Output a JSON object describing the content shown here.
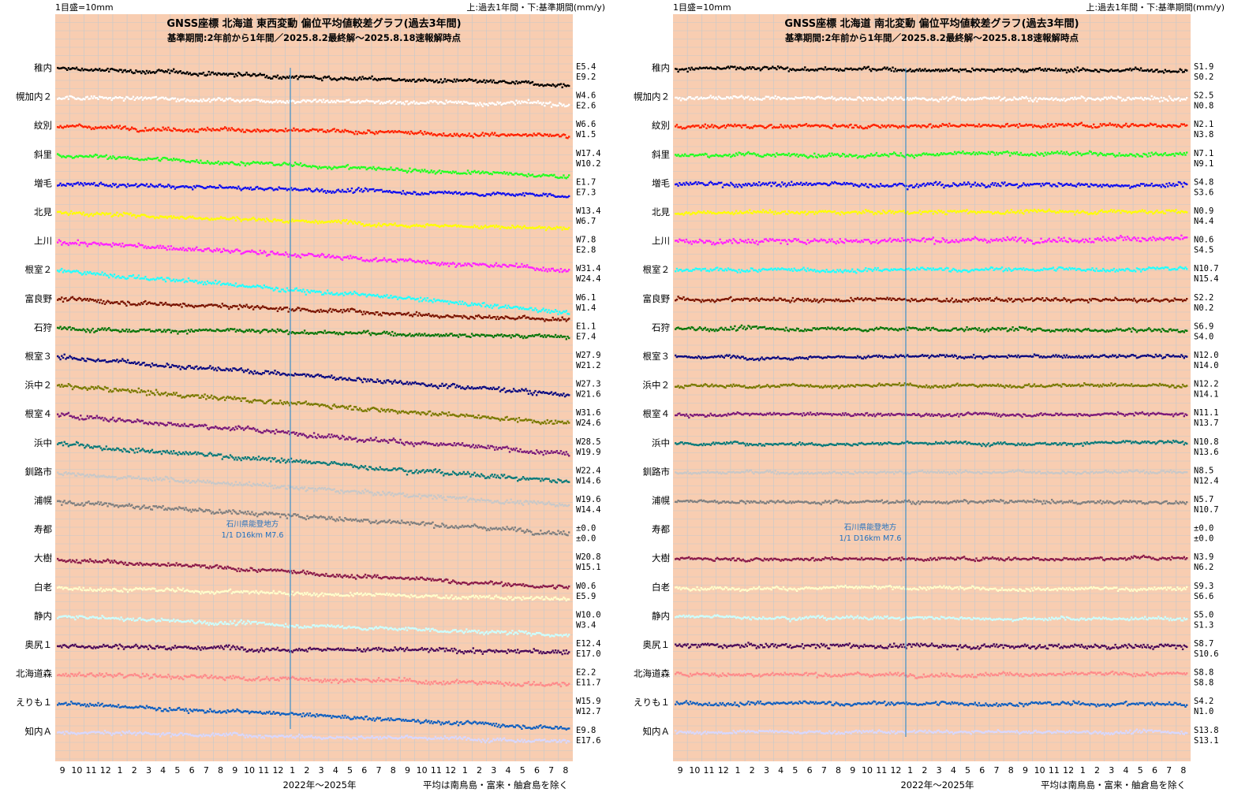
{
  "colors": {
    "plot_bg": "#f8cdb1",
    "grid": "#c9c9c9",
    "event_line": "#3d8fc9",
    "event_text": "#1f6fbf",
    "series": [
      "#000000",
      "#ffffff",
      "#ff2200",
      "#22ff22",
      "#1010ee",
      "#ffff00",
      "#ff22ff",
      "#22ffff",
      "#7a1400",
      "#0a760a",
      "#0a0a80",
      "#7a7a00",
      "#7a1a7a",
      "#0a7a7a",
      "#c8c8c8",
      "#808080",
      "#f8cdb1",
      "#8a1a4a",
      "#ffffcc",
      "#ccffff",
      "#4a0a5a",
      "#ff8a8a",
      "#1060c0",
      "#d8d8ff"
    ]
  },
  "panels": [
    {
      "id": "east-west",
      "scale_note": "1目盛=10mm",
      "period_note": "上:過去1年間・下:基準期間(mm/y)",
      "title": "GNSS座標 北海道 東西変動 偏位平均値較差グラフ(過去3年間)",
      "subtitle": "基準期間:2年前から1年間／2025.8.2最終解～2025.8.18速報解時点",
      "event_label_1": "石川県能登地方",
      "event_label_2": "1/1 D16km M7.6",
      "x_ticks": [
        "9",
        "10",
        "11",
        "12",
        "1",
        "2",
        "3",
        "4",
        "5",
        "6",
        "7",
        "8",
        "9",
        "10",
        "11",
        "12",
        "1",
        "2",
        "3",
        "4",
        "5",
        "6",
        "7",
        "8",
        "9",
        "10",
        "11",
        "12",
        "1",
        "2",
        "3",
        "4",
        "5",
        "6",
        "7",
        "8"
      ],
      "xlabel": "2022年～2025年",
      "footnote": "平均は南鳥島・富来・舳倉島を除く"
    },
    {
      "id": "north-south",
      "scale_note": "1目盛=10mm",
      "period_note": "上:過去1年間・下:基準期間(mm/y)",
      "title": "GNSS座標 北海道 南北変動 偏位平均値較差グラフ(過去3年間)",
      "subtitle": "基準期間:2年前から1年間／2025.8.2最終解～2025.8.18速報解時点",
      "event_label_1": "石川県能登地方",
      "event_label_2": "1/1 D16km M7.6",
      "x_ticks": [
        "9",
        "10",
        "11",
        "12",
        "1",
        "2",
        "3",
        "4",
        "5",
        "6",
        "7",
        "8",
        "9",
        "10",
        "11",
        "12",
        "1",
        "2",
        "3",
        "4",
        "5",
        "6",
        "7",
        "8",
        "9",
        "10",
        "11",
        "12",
        "1",
        "2",
        "3",
        "4",
        "5",
        "6",
        "7",
        "8"
      ],
      "xlabel": "2022年～2025年",
      "footnote": "平均は南鳥島・富来・舳倉島を除く"
    }
  ],
  "chart_data": [
    {
      "type": "scatter",
      "title": "GNSS座標 北海道 東西変動 偏位平均値較差グラフ(過去3年間)",
      "unit_per_division_mm": 10,
      "time_range": [
        "2022-09",
        "2025-08"
      ],
      "event": {
        "date": "2024-01-01",
        "label": "石川県能登地方 1/1 D16km M7.6"
      },
      "series": [
        {
          "name": "稚内",
          "rate_recent": "E5.4",
          "rate_base": "E9.2",
          "trend_mm": -20,
          "noise": 2.5,
          "gap": null,
          "jump": null
        },
        {
          "name": "幌加内２",
          "rate_recent": "W4.6",
          "rate_base": "E2.6",
          "trend_mm": -8,
          "noise": 2.5,
          "gap": null,
          "jump": null
        },
        {
          "name": "紋別",
          "rate_recent": "W6.6",
          "rate_base": "W1.5",
          "trend_mm": -12,
          "noise": 2.5,
          "gap": null,
          "jump": null
        },
        {
          "name": "斜里",
          "rate_recent": "W17.4",
          "rate_base": "W10.2",
          "trend_mm": -26,
          "noise": 2.5,
          "gap": null,
          "jump": null
        },
        {
          "name": "増毛",
          "rate_recent": "E1.7",
          "rate_base": "E7.3",
          "trend_mm": -14,
          "noise": 2.5,
          "gap": null,
          "jump": null
        },
        {
          "name": "北見",
          "rate_recent": "W13.4",
          "rate_base": "W6.7",
          "trend_mm": -20,
          "noise": 2.5,
          "gap": null,
          "jump": null
        },
        {
          "name": "上川",
          "rate_recent": "W7.8",
          "rate_base": "E2.8",
          "trend_mm": -34,
          "noise": 3,
          "gap": null,
          "jump": null
        },
        {
          "name": "根室２",
          "rate_recent": "W31.4",
          "rate_base": "W24.4",
          "trend_mm": -50,
          "noise": 3,
          "gap": null,
          "jump": null
        },
        {
          "name": "富良野",
          "rate_recent": "W6.1",
          "rate_base": "W1.4",
          "trend_mm": -25,
          "noise": 3,
          "gap": null,
          "jump": null
        },
        {
          "name": "石狩",
          "rate_recent": "E1.1",
          "rate_base": "E7.4",
          "trend_mm": -10,
          "noise": 2.5,
          "gap": null,
          "jump": null
        },
        {
          "name": "根室３",
          "rate_recent": "W27.9",
          "rate_base": "W21.2",
          "trend_mm": -45,
          "noise": 3,
          "gap": null,
          "jump": null
        },
        {
          "name": "浜中２",
          "rate_recent": "W27.3",
          "rate_base": "W21.6",
          "trend_mm": -45,
          "noise": 3,
          "gap": null,
          "jump": null
        },
        {
          "name": "根室４",
          "rate_recent": "W31.6",
          "rate_base": "W24.6",
          "trend_mm": -48,
          "noise": 3,
          "gap": null,
          "jump": null
        },
        {
          "name": "浜中",
          "rate_recent": "W28.5",
          "rate_base": "W19.9",
          "trend_mm": -46,
          "noise": 3,
          "gap": null,
          "jump": null
        },
        {
          "name": "釧路市",
          "rate_recent": "W22.4",
          "rate_base": "W14.6",
          "trend_mm": -40,
          "noise": 3,
          "gap": null,
          "jump": null
        },
        {
          "name": "浦幌",
          "rate_recent": "W19.6",
          "rate_base": "W14.4",
          "trend_mm": -38,
          "noise": 3,
          "gap": null,
          "jump": null
        },
        {
          "name": "寿都",
          "rate_recent": "±0.0",
          "rate_base": "±0.0",
          "trend_mm": 0,
          "noise": 0,
          "gap": null,
          "jump": null
        },
        {
          "name": "大樹",
          "rate_recent": "W20.8",
          "rate_base": "W15.1",
          "trend_mm": -35,
          "noise": 2.5,
          "gap": null,
          "jump": null
        },
        {
          "name": "白老",
          "rate_recent": "W0.6",
          "rate_base": "E5.9",
          "trend_mm": -14,
          "noise": 2.5,
          "gap": null,
          "jump": null
        },
        {
          "name": "静内",
          "rate_recent": "W10.0",
          "rate_base": "W3.4",
          "trend_mm": -22,
          "noise": 2.5,
          "gap": null,
          "jump": null
        },
        {
          "name": "奥尻１",
          "rate_recent": "E12.4",
          "rate_base": "E17.0",
          "trend_mm": -8,
          "noise": 3,
          "gap": null,
          "jump": null
        },
        {
          "name": "北海道森",
          "rate_recent": "E2.2",
          "rate_base": "E11.7",
          "trend_mm": -12,
          "noise": 3,
          "gap": null,
          "jump": null
        },
        {
          "name": "えりも１",
          "rate_recent": "W15.9",
          "rate_base": "W12.7",
          "trend_mm": -30,
          "noise": 2.5,
          "gap": null,
          "jump": null
        },
        {
          "name": "知内Ａ",
          "rate_recent": "E9.8",
          "rate_base": "E17.6",
          "trend_mm": -10,
          "noise": 2.5,
          "gap": null,
          "jump": null
        }
      ]
    },
    {
      "type": "scatter",
      "title": "GNSS座標 北海道 南北変動 偏位平均値較差グラフ(過去3年間)",
      "unit_per_division_mm": 10,
      "time_range": [
        "2022-09",
        "2025-08"
      ],
      "event": {
        "date": "2024-01-01",
        "label": "石川県能登地方 1/1 D16km M7.6"
      },
      "series": [
        {
          "name": "稚内",
          "rate_recent": "S1.9",
          "rate_base": "S0.2",
          "trend_mm": -2,
          "noise": 2.5,
          "gap": null,
          "jump": null
        },
        {
          "name": "幌加内２",
          "rate_recent": "S2.5",
          "rate_base": "N0.8",
          "trend_mm": -2,
          "noise": 2.5,
          "gap": null,
          "jump": null
        },
        {
          "name": "紋別",
          "rate_recent": "N2.1",
          "rate_base": "N3.8",
          "trend_mm": 2,
          "noise": 2.5,
          "gap": null,
          "jump": null
        },
        {
          "name": "斜里",
          "rate_recent": "N7.1",
          "rate_base": "N9.1",
          "trend_mm": 2,
          "noise": 2.5,
          "gap": null,
          "jump": null
        },
        {
          "name": "増毛",
          "rate_recent": "S4.8",
          "rate_base": "S3.6",
          "trend_mm": -1,
          "noise": 3,
          "gap": null,
          "jump": null
        },
        {
          "name": "北見",
          "rate_recent": "N0.9",
          "rate_base": "N4.4",
          "trend_mm": 2,
          "noise": 2.5,
          "gap": null,
          "jump": null
        },
        {
          "name": "上川",
          "rate_recent": "N0.6",
          "rate_base": "S4.5",
          "trend_mm": 4,
          "noise": 3.5,
          "gap": null,
          "jump": null
        },
        {
          "name": "根室２",
          "rate_recent": "N10.7",
          "rate_base": "N15.4",
          "trend_mm": 2,
          "noise": 2.5,
          "gap": null,
          "jump": null
        },
        {
          "name": "富良野",
          "rate_recent": "S2.2",
          "rate_base": "N0.2",
          "trend_mm": -1,
          "noise": 2.5,
          "gap": null,
          "jump": null
        },
        {
          "name": "石狩",
          "rate_recent": "S6.9",
          "rate_base": "S4.0",
          "trend_mm": -2,
          "noise": 2.5,
          "gap": null,
          "jump": null
        },
        {
          "name": "根室３",
          "rate_recent": "N12.0",
          "rate_base": "N14.0",
          "trend_mm": 1,
          "noise": 2,
          "gap": null,
          "jump": null
        },
        {
          "name": "浜中２",
          "rate_recent": "N12.2",
          "rate_base": "N14.1",
          "trend_mm": 1,
          "noise": 2,
          "gap": null,
          "jump": null
        },
        {
          "name": "根室４",
          "rate_recent": "N11.1",
          "rate_base": "N13.7",
          "trend_mm": 1,
          "noise": 2,
          "gap": null,
          "jump": null
        },
        {
          "name": "浜中",
          "rate_recent": "N10.8",
          "rate_base": "N13.6",
          "trend_mm": 1,
          "noise": 2,
          "gap": null,
          "jump": null
        },
        {
          "name": "釧路市",
          "rate_recent": "N8.5",
          "rate_base": "N12.4",
          "trend_mm": 1,
          "noise": 2,
          "gap": null,
          "jump": null
        },
        {
          "name": "浦幌",
          "rate_recent": "N5.7",
          "rate_base": "N10.7",
          "trend_mm": -1,
          "noise": 2,
          "gap": null,
          "jump": null
        },
        {
          "name": "寿都",
          "rate_recent": "±0.0",
          "rate_base": "±0.0",
          "trend_mm": 0,
          "noise": 0,
          "gap": null,
          "jump": null
        },
        {
          "name": "大樹",
          "rate_recent": "N3.9",
          "rate_base": "N6.2",
          "trend_mm": 1,
          "noise": 2,
          "gap": null,
          "jump": null
        },
        {
          "name": "白老",
          "rate_recent": "S9.3",
          "rate_base": "S6.6",
          "trend_mm": -1,
          "noise": 2,
          "gap": null,
          "jump": null
        },
        {
          "name": "静内",
          "rate_recent": "S5.0",
          "rate_base": "S1.3",
          "trend_mm": -3,
          "noise": 2,
          "gap": null,
          "jump": null
        },
        {
          "name": "奥尻１",
          "rate_recent": "S8.7",
          "rate_base": "S10.6",
          "trend_mm": -1,
          "noise": 3,
          "gap": null,
          "jump": null
        },
        {
          "name": "北海道森",
          "rate_recent": "S8.8",
          "rate_base": "S8.8",
          "trend_mm": 0,
          "noise": 2.5,
          "gap": null,
          "jump": null
        },
        {
          "name": "えりも１",
          "rate_recent": "S4.2",
          "rate_base": "N1.0",
          "trend_mm": -1,
          "noise": 2.5,
          "gap": null,
          "jump": null
        },
        {
          "name": "知内Ａ",
          "rate_recent": "S13.8",
          "rate_base": "S13.1",
          "trend_mm": 0,
          "noise": 2,
          "gap": null,
          "jump": null
        }
      ]
    }
  ]
}
